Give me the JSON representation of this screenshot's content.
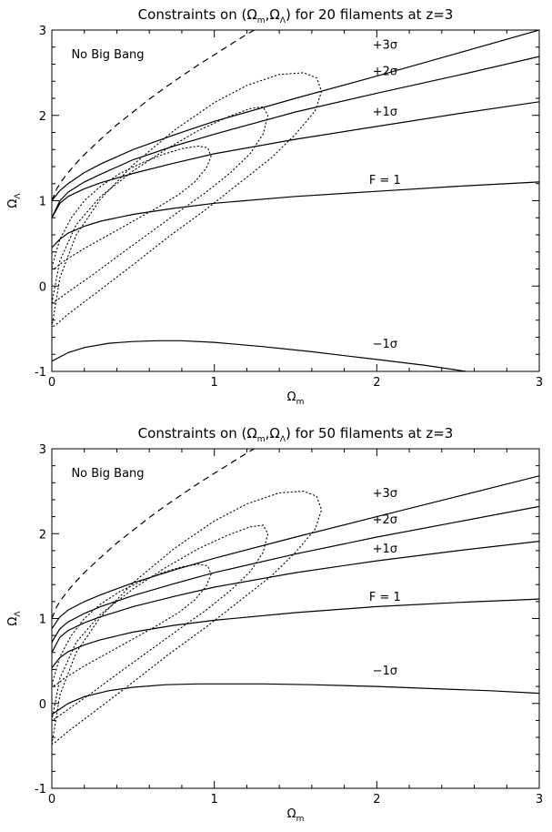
{
  "chart_data": [
    {
      "type": "line",
      "title_prefix": "Constraints on (",
      "title_sym_m": "Ω",
      "title_sub_m": "m",
      "title_comma": ",",
      "title_sym_l": "Ω",
      "title_sub_l": "Λ",
      "title_suffix": ") for 20 filaments at z=3",
      "xlabel_sym": "Ω",
      "xlabel_sub": "m",
      "ylabel_sym": "Ω",
      "ylabel_sub": "Λ",
      "xlim": [
        0,
        3
      ],
      "ylim": [
        -1,
        3
      ],
      "xticks": [
        "0",
        "1",
        "2",
        "3"
      ],
      "yticks": [
        "-1",
        "0",
        "1",
        "2",
        "3"
      ],
      "region_label": "No Big Bang",
      "series": [
        {
          "name": "+3σ",
          "style": "solid",
          "x": [
            0,
            0.05,
            0.1,
            0.2,
            0.3,
            0.5,
            0.75,
            1.0,
            1.5,
            2.0,
            2.5,
            3.0
          ],
          "y": [
            1.0,
            1.12,
            1.2,
            1.33,
            1.43,
            1.6,
            1.77,
            1.93,
            2.2,
            2.46,
            2.73,
            3.0
          ],
          "label": "+3σ",
          "label_xy": [
            2.05,
            2.78
          ]
        },
        {
          "name": "+2σ",
          "style": "solid",
          "x": [
            0,
            0.05,
            0.1,
            0.2,
            0.3,
            0.5,
            0.75,
            1.0,
            1.5,
            2.0,
            2.5,
            3.0
          ],
          "y": [
            0.8,
            1.0,
            1.1,
            1.22,
            1.31,
            1.48,
            1.64,
            1.78,
            2.04,
            2.26,
            2.47,
            2.69
          ],
          "label": "+2σ",
          "label_xy": [
            2.05,
            2.47
          ]
        },
        {
          "name": "+1σ",
          "style": "solid",
          "x": [
            0,
            0.05,
            0.1,
            0.2,
            0.3,
            0.5,
            0.75,
            1.0,
            1.5,
            2.0,
            2.5,
            3.0
          ],
          "y": [
            0.8,
            0.97,
            1.05,
            1.14,
            1.21,
            1.32,
            1.44,
            1.55,
            1.72,
            1.87,
            2.02,
            2.16
          ],
          "label": "+1σ",
          "label_xy": [
            2.05,
            2.0
          ]
        },
        {
          "name": "F = 1",
          "style": "solid",
          "x": [
            0,
            0.05,
            0.1,
            0.2,
            0.3,
            0.5,
            0.75,
            1.0,
            1.5,
            2.0,
            2.5,
            3.0
          ],
          "y": [
            0.45,
            0.55,
            0.62,
            0.7,
            0.76,
            0.84,
            0.91,
            0.97,
            1.05,
            1.11,
            1.17,
            1.22
          ],
          "label": "F = 1",
          "label_xy": [
            2.05,
            1.2
          ]
        },
        {
          "name": "−1σ",
          "style": "solid",
          "x": [
            0,
            0.1,
            0.2,
            0.35,
            0.5,
            0.65,
            0.8,
            1.0,
            1.3,
            1.6,
            2.0,
            2.3,
            2.55,
            3.0
          ],
          "y": [
            -0.88,
            -0.78,
            -0.72,
            -0.67,
            -0.65,
            -0.64,
            -0.64,
            -0.66,
            -0.71,
            -0.77,
            -0.86,
            -0.93,
            -1.0,
            -1.1
          ],
          "label": "−1σ",
          "label_xy": [
            2.05,
            -0.72
          ]
        },
        {
          "name": "no-big-bang",
          "style": "dashed",
          "x": [
            0,
            0.03,
            0.06,
            0.1,
            0.15,
            0.2,
            0.3,
            0.4,
            0.5,
            0.6,
            0.7,
            0.8,
            0.9,
            1.0,
            1.1,
            1.2,
            1.3
          ],
          "y": [
            1.0,
            1.14,
            1.23,
            1.33,
            1.44,
            1.54,
            1.72,
            1.89,
            2.04,
            2.19,
            2.33,
            2.46,
            2.59,
            2.71,
            2.83,
            2.95,
            3.06
          ]
        }
      ],
      "ellipses": [
        {
          "name": "contour-1",
          "x": [
            0.0,
            0.05,
            0.12,
            0.2,
            0.3,
            0.42,
            0.55,
            0.68,
            0.8,
            0.9,
            0.96,
            0.98,
            0.95,
            0.88,
            0.78,
            0.65,
            0.5,
            0.35,
            0.2,
            0.08,
            0.02,
            0.0
          ],
          "y": [
            0.22,
            0.55,
            0.8,
            1.0,
            1.17,
            1.32,
            1.44,
            1.54,
            1.61,
            1.64,
            1.62,
            1.52,
            1.38,
            1.22,
            1.07,
            0.92,
            0.76,
            0.6,
            0.44,
            0.3,
            0.21,
            0.22
          ]
        },
        {
          "name": "contour-2",
          "x": [
            0.0,
            0.05,
            0.15,
            0.3,
            0.5,
            0.7,
            0.9,
            1.08,
            1.22,
            1.3,
            1.33,
            1.3,
            1.22,
            1.1,
            0.95,
            0.78,
            0.6,
            0.42,
            0.25,
            0.1,
            0.02,
            0.0
          ],
          "y": [
            -0.2,
            0.3,
            0.72,
            1.05,
            1.35,
            1.6,
            1.82,
            1.98,
            2.08,
            2.1,
            2.0,
            1.78,
            1.55,
            1.33,
            1.1,
            0.87,
            0.62,
            0.37,
            0.13,
            -0.07,
            -0.18,
            -0.2
          ]
        },
        {
          "name": "contour-3",
          "x": [
            0.0,
            0.05,
            0.15,
            0.3,
            0.5,
            0.75,
            1.0,
            1.2,
            1.4,
            1.55,
            1.63,
            1.66,
            1.62,
            1.5,
            1.35,
            1.15,
            0.95,
            0.72,
            0.5,
            0.28,
            0.1,
            0.02,
            0.0
          ],
          "y": [
            -0.48,
            0.1,
            0.6,
            1.02,
            1.42,
            1.82,
            2.15,
            2.35,
            2.48,
            2.5,
            2.44,
            2.28,
            2.05,
            1.78,
            1.5,
            1.2,
            0.9,
            0.58,
            0.25,
            -0.07,
            -0.33,
            -0.46,
            -0.48
          ]
        }
      ]
    },
    {
      "type": "line",
      "title_prefix": "Constraints on (",
      "title_sym_m": "Ω",
      "title_sub_m": "m",
      "title_comma": ",",
      "title_sym_l": "Ω",
      "title_sub_l": "Λ",
      "title_suffix": ") for 50 filaments at z=3",
      "xlabel_sym": "Ω",
      "xlabel_sub": "m",
      "ylabel_sym": "Ω",
      "ylabel_sub": "Λ",
      "xlim": [
        0,
        3
      ],
      "ylim": [
        -1,
        3
      ],
      "xticks": [
        "0",
        "1",
        "2",
        "3"
      ],
      "yticks": [
        "-1",
        "0",
        "1",
        "2",
        "3"
      ],
      "region_label": "No Big Bang",
      "series": [
        {
          "name": "+3σ",
          "style": "solid",
          "x": [
            0,
            0.05,
            0.1,
            0.2,
            0.3,
            0.5,
            0.75,
            1.0,
            1.5,
            2.0,
            2.5,
            3.0
          ],
          "y": [
            0.88,
            1.02,
            1.1,
            1.2,
            1.28,
            1.42,
            1.57,
            1.71,
            1.96,
            2.2,
            2.44,
            2.68
          ],
          "label": "+3σ",
          "label_xy": [
            2.05,
            2.43
          ]
        },
        {
          "name": "+2σ",
          "style": "solid",
          "x": [
            0,
            0.05,
            0.1,
            0.2,
            0.3,
            0.5,
            0.75,
            1.0,
            1.5,
            2.0,
            2.5,
            3.0
          ],
          "y": [
            0.72,
            0.88,
            0.96,
            1.06,
            1.14,
            1.27,
            1.41,
            1.54,
            1.76,
            1.96,
            2.14,
            2.32
          ],
          "label": "+2σ",
          "label_xy": [
            2.05,
            2.12
          ]
        },
        {
          "name": "+1σ",
          "style": "solid",
          "x": [
            0,
            0.05,
            0.1,
            0.2,
            0.3,
            0.5,
            0.75,
            1.0,
            1.5,
            2.0,
            2.5,
            3.0
          ],
          "y": [
            0.6,
            0.78,
            0.86,
            0.95,
            1.02,
            1.14,
            1.26,
            1.37,
            1.54,
            1.68,
            1.8,
            1.91
          ],
          "label": "+1σ",
          "label_xy": [
            2.05,
            1.78
          ]
        },
        {
          "name": "F = 1",
          "style": "solid",
          "x": [
            0,
            0.05,
            0.1,
            0.2,
            0.3,
            0.5,
            0.75,
            1.0,
            1.5,
            2.0,
            2.5,
            3.0
          ],
          "y": [
            0.42,
            0.54,
            0.61,
            0.69,
            0.75,
            0.84,
            0.92,
            0.98,
            1.07,
            1.14,
            1.19,
            1.23
          ],
          "label": "F = 1",
          "label_xy": [
            2.05,
            1.21
          ]
        },
        {
          "name": "−1σ",
          "style": "solid",
          "x": [
            0,
            0.1,
            0.2,
            0.35,
            0.5,
            0.7,
            0.9,
            1.1,
            1.3,
            1.6,
            2.0,
            2.4,
            2.7,
            3.0
          ],
          "y": [
            -0.13,
            0.0,
            0.08,
            0.15,
            0.19,
            0.22,
            0.23,
            0.23,
            0.23,
            0.22,
            0.2,
            0.17,
            0.15,
            0.12
          ],
          "label": "−1σ",
          "label_xy": [
            2.05,
            0.34
          ]
        },
        {
          "name": "no-big-bang",
          "style": "dashed",
          "x": [
            0,
            0.03,
            0.06,
            0.1,
            0.15,
            0.2,
            0.3,
            0.4,
            0.5,
            0.6,
            0.7,
            0.8,
            0.9,
            1.0,
            1.1,
            1.2,
            1.3
          ],
          "y": [
            1.0,
            1.14,
            1.23,
            1.33,
            1.44,
            1.54,
            1.72,
            1.89,
            2.04,
            2.19,
            2.33,
            2.46,
            2.59,
            2.71,
            2.83,
            2.95,
            3.06
          ]
        }
      ],
      "ellipses": [
        {
          "name": "contour-1",
          "x": [
            0.0,
            0.05,
            0.12,
            0.2,
            0.3,
            0.42,
            0.55,
            0.68,
            0.8,
            0.9,
            0.96,
            0.98,
            0.95,
            0.88,
            0.78,
            0.65,
            0.5,
            0.35,
            0.2,
            0.08,
            0.02,
            0.0
          ],
          "y": [
            0.22,
            0.55,
            0.8,
            1.0,
            1.17,
            1.32,
            1.44,
            1.54,
            1.61,
            1.64,
            1.62,
            1.52,
            1.38,
            1.22,
            1.07,
            0.92,
            0.76,
            0.6,
            0.44,
            0.3,
            0.21,
            0.22
          ]
        },
        {
          "name": "contour-2",
          "x": [
            0.0,
            0.05,
            0.15,
            0.3,
            0.5,
            0.7,
            0.9,
            1.08,
            1.22,
            1.3,
            1.33,
            1.3,
            1.22,
            1.1,
            0.95,
            0.78,
            0.6,
            0.42,
            0.25,
            0.1,
            0.02,
            0.0
          ],
          "y": [
            -0.2,
            0.3,
            0.72,
            1.05,
            1.35,
            1.6,
            1.82,
            1.98,
            2.08,
            2.1,
            2.0,
            1.78,
            1.55,
            1.33,
            1.1,
            0.87,
            0.62,
            0.37,
            0.13,
            -0.07,
            -0.18,
            -0.2
          ]
        },
        {
          "name": "contour-3",
          "x": [
            0.0,
            0.05,
            0.15,
            0.3,
            0.5,
            0.75,
            1.0,
            1.2,
            1.4,
            1.55,
            1.63,
            1.66,
            1.62,
            1.5,
            1.35,
            1.15,
            0.95,
            0.72,
            0.5,
            0.28,
            0.1,
            0.02,
            0.0
          ],
          "y": [
            -0.48,
            0.1,
            0.6,
            1.02,
            1.42,
            1.82,
            2.15,
            2.35,
            2.48,
            2.5,
            2.44,
            2.28,
            2.05,
            1.78,
            1.5,
            1.2,
            0.9,
            0.58,
            0.25,
            -0.07,
            -0.33,
            -0.46,
            -0.48
          ]
        }
      ]
    }
  ]
}
